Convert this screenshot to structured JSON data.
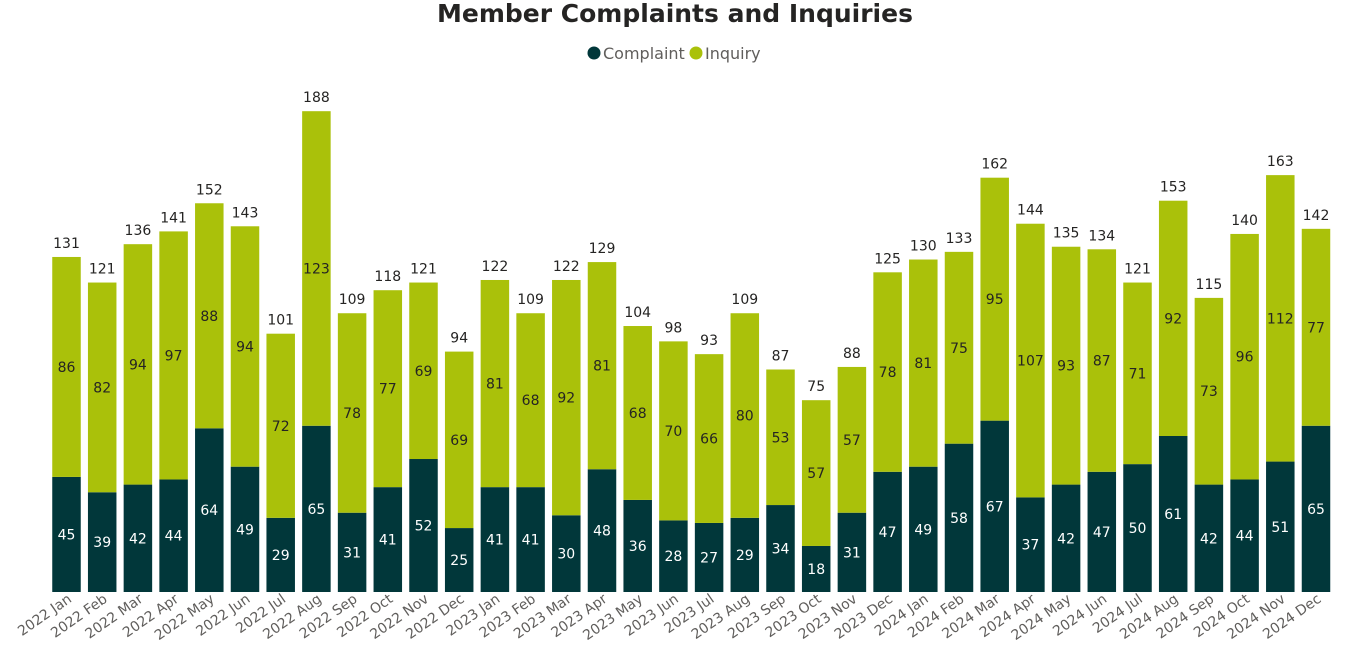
{
  "chart_data": {
    "type": "bar",
    "stacked": true,
    "title": "Member Complaints and Inquiries",
    "legend_position": "top-center",
    "grid": false,
    "ylim": [
      0,
      200
    ],
    "categories": [
      "2022 Jan",
      "2022 Feb",
      "2022 Mar",
      "2022 Apr",
      "2022 May",
      "2022 Jun",
      "2022 Jul",
      "2022 Aug",
      "2022 Sep",
      "2022 Oct",
      "2022 Nov",
      "2022 Dec",
      "2023 Jan",
      "2023 Feb",
      "2023 Mar",
      "2023 Apr",
      "2023 May",
      "2023 Jun",
      "2023 Jul",
      "2023 Aug",
      "2023 Sep",
      "2023 Oct",
      "2023 Nov",
      "2023 Dec",
      "2024 Jan",
      "2024 Feb",
      "2024 Mar",
      "2024 Apr",
      "2024 May",
      "2024 Jun",
      "2024 Jul",
      "2024 Aug",
      "2024 Sep",
      "2024 Oct",
      "2024 Nov",
      "2024 Dec"
    ],
    "series": [
      {
        "name": "Complaint",
        "color": "#01373a",
        "values": [
          45,
          39,
          42,
          44,
          64,
          49,
          29,
          65,
          31,
          41,
          52,
          25,
          41,
          41,
          30,
          48,
          36,
          28,
          27,
          29,
          34,
          18,
          31,
          47,
          49,
          58,
          67,
          37,
          42,
          47,
          50,
          61,
          42,
          44,
          51,
          65
        ]
      },
      {
        "name": "Inquiry",
        "color": "#aac10a",
        "values": [
          86,
          82,
          94,
          97,
          88,
          94,
          72,
          123,
          78,
          77,
          69,
          69,
          81,
          68,
          92,
          81,
          68,
          70,
          66,
          80,
          53,
          57,
          57,
          78,
          81,
          75,
          95,
          107,
          93,
          87,
          71,
          92,
          73,
          96,
          112,
          77
        ]
      }
    ],
    "totals": [
      131,
      121,
      136,
      141,
      152,
      143,
      101,
      188,
      109,
      118,
      121,
      94,
      122,
      109,
      122,
      129,
      104,
      98,
      93,
      109,
      87,
      75,
      88,
      125,
      130,
      133,
      162,
      144,
      135,
      134,
      121,
      153,
      115,
      140,
      163,
      142
    ]
  }
}
